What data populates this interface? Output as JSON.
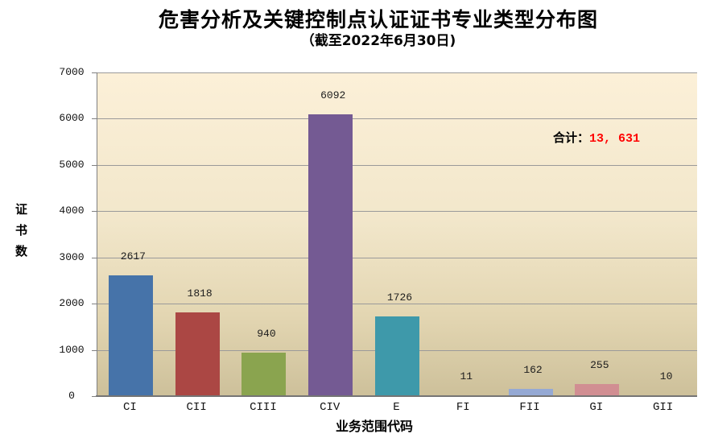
{
  "chart_data": {
    "type": "bar",
    "title": "危害分析及关键控制点认证证书专业类型分布图",
    "subtitle": "（截至2022年6月30日)",
    "categories": [
      "CI",
      "CII",
      "CIII",
      "CIV",
      "E",
      "FI",
      "FII",
      "GI",
      "GII"
    ],
    "values": [
      2617,
      1818,
      940,
      6092,
      1726,
      11,
      162,
      255,
      10
    ],
    "bar_colors": [
      "#4673A9",
      "#AB4744",
      "#8AA44F",
      "#745A93",
      "#3E99AA",
      "#DD8439",
      "#95A9D4",
      "#D18E92",
      "#B3C98B"
    ],
    "xlabel": "业务范围代码",
    "ylabel": "证书数",
    "ylim": [
      0,
      7000
    ],
    "ytick_step": 1000,
    "grid": true,
    "legend_position": "none",
    "annotation": {
      "label": "合计：",
      "value": "13, 631",
      "value_color": "#FF0000"
    },
    "style_colors": {
      "plot_bg_top": "#FCF0D8",
      "plot_bg_bottom": "#CDC09A",
      "gridline": "#9A9A9A",
      "axis_line": "#757575",
      "label_text": "#000000"
    }
  }
}
